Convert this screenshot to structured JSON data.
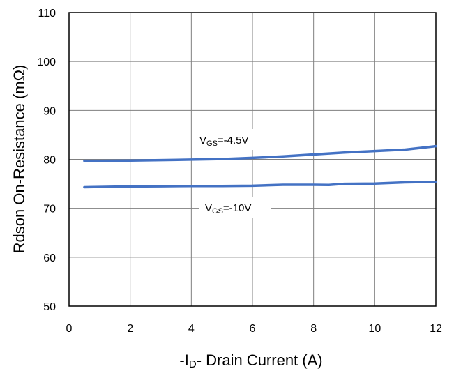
{
  "chart_data": {
    "type": "line",
    "title": "",
    "xlabel": {
      "prefix": "-I",
      "subscript": "D",
      "suffix": "- Drain Current (A)"
    },
    "ylabel": "Rdson On-Resistance (mΩ)",
    "xlim": [
      0,
      12
    ],
    "ylim": [
      50,
      110
    ],
    "xticks": [
      "0",
      "2",
      "4",
      "6",
      "8",
      "10",
      "12"
    ],
    "yticks": [
      "50",
      "60",
      "70",
      "80",
      "90",
      "100",
      "110"
    ],
    "grid": true,
    "legend": "none",
    "series": [
      {
        "name": "VGS=-4.5V",
        "label_parts": {
          "main": "V",
          "sub": "GS",
          "rest": "=-4.5V"
        },
        "color": "#4472C4",
        "x": [
          0.5,
          1,
          2,
          3,
          4,
          5,
          6,
          7,
          8,
          9,
          10,
          11,
          12
        ],
        "values": [
          79.7,
          79.7,
          79.75,
          79.85,
          79.95,
          80.05,
          80.3,
          80.6,
          81.0,
          81.4,
          81.7,
          82.0,
          82.7
        ]
      },
      {
        "name": "VGS=-10V",
        "label_parts": {
          "main": "V",
          "sub": "GS",
          "rest": "=-10V"
        },
        "color": "#4472C4",
        "x": [
          0.5,
          1,
          2,
          3,
          4,
          5,
          6,
          7,
          8,
          8.5,
          9,
          10,
          11,
          12
        ],
        "values": [
          74.3,
          74.35,
          74.45,
          74.5,
          74.55,
          74.55,
          74.6,
          74.8,
          74.8,
          74.75,
          75.0,
          75.05,
          75.3,
          75.4
        ]
      }
    ]
  }
}
